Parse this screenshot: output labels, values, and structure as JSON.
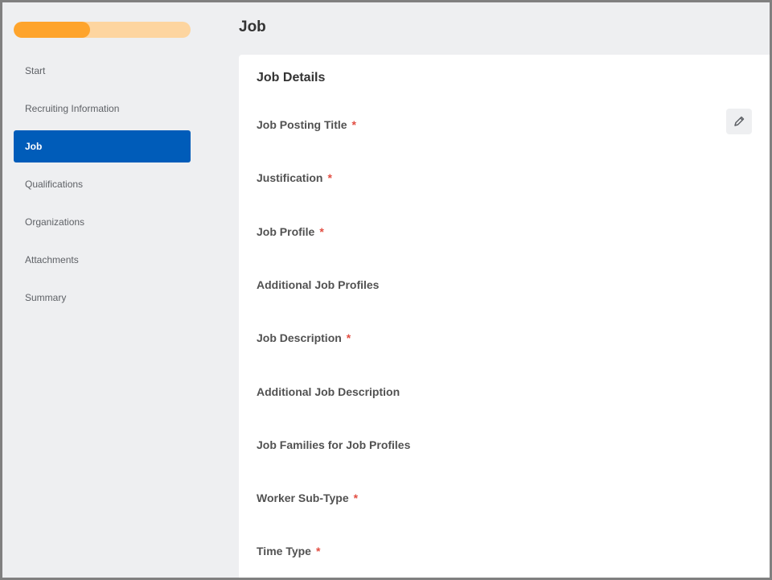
{
  "progress": {
    "percent": 43,
    "colors": {
      "fill": "#fea42c",
      "track": "#fdd5a0"
    }
  },
  "nav": {
    "items": [
      {
        "label": "Start",
        "active": false
      },
      {
        "label": "Recruiting Information",
        "active": false
      },
      {
        "label": "Job",
        "active": true
      },
      {
        "label": "Qualifications",
        "active": false
      },
      {
        "label": "Organizations",
        "active": false
      },
      {
        "label": "Attachments",
        "active": false
      },
      {
        "label": "Summary",
        "active": false
      }
    ]
  },
  "page": {
    "title": "Job"
  },
  "card": {
    "title": "Job Details",
    "edit_icon": "pencil-icon",
    "fields": [
      {
        "label": "Job Posting Title",
        "required": true
      },
      {
        "label": "Justification",
        "required": true
      },
      {
        "label": "Job Profile",
        "required": true
      },
      {
        "label": "Additional Job Profiles",
        "required": false
      },
      {
        "label": "Job Description",
        "required": true
      },
      {
        "label": "Additional Job Description",
        "required": false
      },
      {
        "label": "Job Families for Job Profiles",
        "required": false
      },
      {
        "label": "Worker Sub-Type",
        "required": true
      },
      {
        "label": "Time Type",
        "required": true
      }
    ],
    "required_mark": "*"
  },
  "colors": {
    "accent": "#005cb9",
    "required": "#de2e21"
  }
}
